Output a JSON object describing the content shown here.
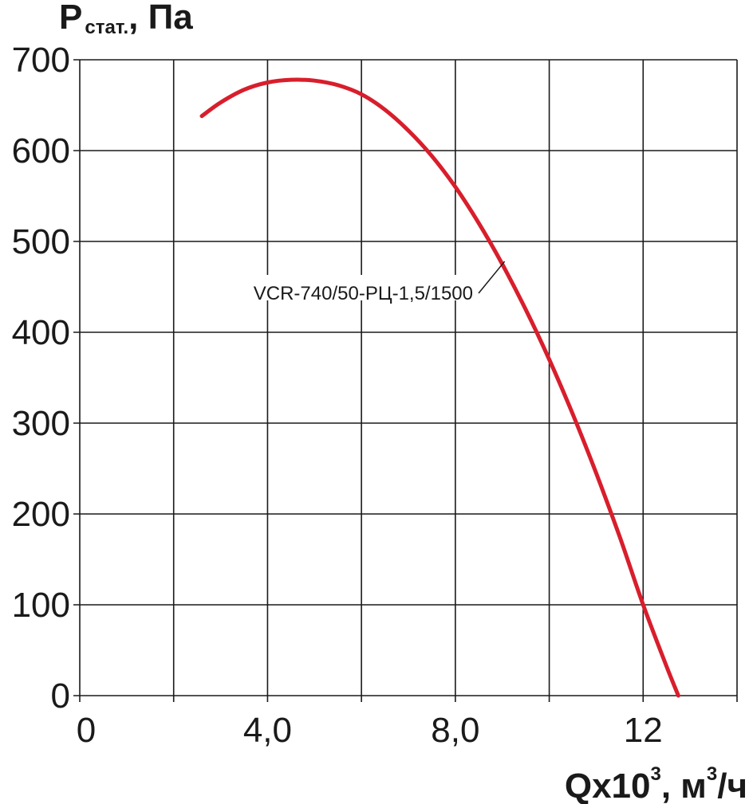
{
  "chart_data": {
    "type": "line",
    "title": "",
    "ylabel": {
      "main": "P",
      "sub": "стат.",
      "suffix": ", Па"
    },
    "xlabel": {
      "main": "Qx10",
      "sup1": "3",
      "mid": ", м",
      "sup2": "3",
      "suffix": "/ч"
    },
    "xlim": [
      0,
      14
    ],
    "ylim": [
      0,
      700
    ],
    "x_gridlines": [
      0,
      2,
      4,
      6,
      8,
      10,
      12,
      14
    ],
    "y_gridlines": [
      0,
      100,
      200,
      300,
      400,
      500,
      600,
      700
    ],
    "x_ticks": [
      {
        "value": 0,
        "label": "0"
      },
      {
        "value": 4,
        "label": "4,0"
      },
      {
        "value": 8,
        "label": "8,0"
      },
      {
        "value": 12,
        "label": "12"
      }
    ],
    "y_ticks": [
      {
        "value": 0,
        "label": "0"
      },
      {
        "value": 100,
        "label": "100"
      },
      {
        "value": 200,
        "label": "200"
      },
      {
        "value": 300,
        "label": "300"
      },
      {
        "value": 400,
        "label": "400"
      },
      {
        "value": 500,
        "label": "500"
      },
      {
        "value": 600,
        "label": "600"
      },
      {
        "value": 700,
        "label": "700"
      }
    ],
    "series": [
      {
        "name": "VCR-740/50-РЦ-1,5/1500",
        "color": "#d81e2c",
        "x": [
          2.6,
          3.0,
          3.5,
          4.0,
          4.5,
          5.0,
          5.5,
          6.0,
          6.5,
          7.0,
          7.5,
          8.0,
          8.5,
          9.0,
          9.5,
          10.0,
          10.5,
          11.0,
          11.5,
          12.0,
          12.5,
          12.75
        ],
        "y": [
          638,
          653,
          667,
          675,
          678,
          677,
          672,
          662,
          645,
          622,
          594,
          560,
          520,
          475,
          425,
          370,
          310,
          245,
          175,
          100,
          32,
          0
        ],
        "label_anchor": {
          "x": 9.05,
          "y": 478
        }
      }
    ]
  }
}
